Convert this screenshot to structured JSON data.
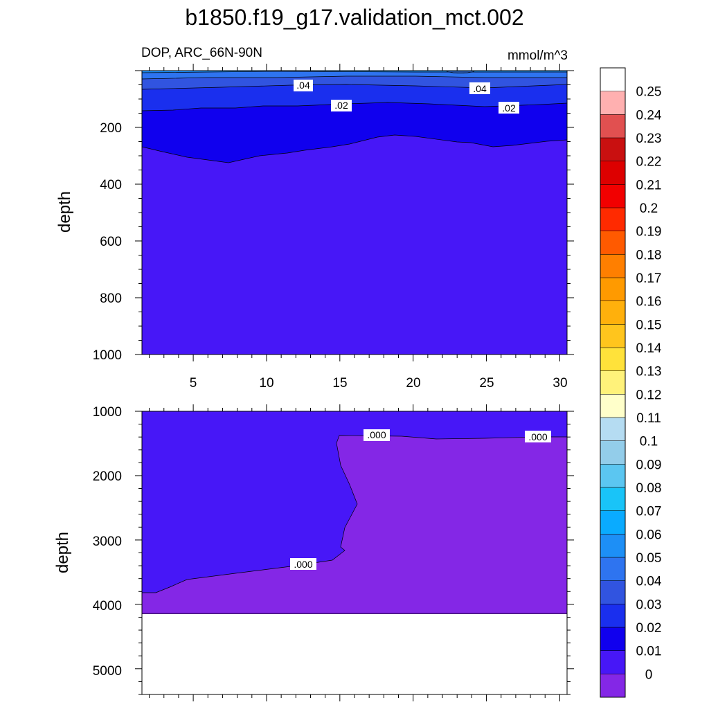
{
  "title": "b1850.f19_g17.validation_mct.002",
  "subtitle_left": "DOP, ARC_66N-90N",
  "subtitle_right": "mmol/m^3",
  "colors": {
    "levels": [
      "#8427e6",
      "#4717f7",
      "#1000ee",
      "#1a2fee",
      "#3154e0",
      "#2e74f0",
      "#1d8ff6",
      "#0aabff",
      "#19c4f8",
      "#5bc6f1",
      "#93cdea",
      "#b5dcf2",
      "#ffffca",
      "#fff27a",
      "#ffe23a",
      "#ffc51d",
      "#ffb00c",
      "#ff9a00",
      "#ff7f00",
      "#ff5a00",
      "#ff2a00",
      "#f20000",
      "#dd0000",
      "#c91010",
      "#e15050",
      "#ffb0b0"
    ]
  },
  "chart_data": [
    {
      "type": "contour",
      "panel": "upper",
      "title": "b1850.f19_g17.validation_mct.002",
      "subtitle_left": "DOP, ARC_66N-90N",
      "subtitle_right": "mmol/m^3",
      "xlabel": "",
      "ylabel": "depth",
      "xlim": [
        1.5,
        30.5
      ],
      "ylim": [
        1000,
        0
      ],
      "xticks": [
        "5",
        "10",
        "15",
        "20",
        "25",
        "30"
      ],
      "yticks": [
        "200",
        "400",
        "600",
        "800",
        "1000"
      ],
      "contour_labels": [
        ".04",
        ".04",
        ".02",
        ".02"
      ],
      "regions": [
        {
          "level": "0.03-0.04",
          "top_depth": 0,
          "bottom_depth": 15
        },
        {
          "level": "0.02-0.03",
          "top_depth": 15,
          "bottom_depth": 65
        },
        {
          "level": "0.01-0.02",
          "top_depth": 65,
          "bottom_depth": 145
        },
        {
          "level": "0.00-0.01",
          "top_depth": 145,
          "bottom_depth": 270
        },
        {
          "level": "0-0.00",
          "top_depth": 270,
          "bottom_depth": 1000
        }
      ]
    },
    {
      "type": "contour",
      "panel": "lower",
      "xlabel": "",
      "ylabel": "depth",
      "xlim": [
        1.5,
        30.5
      ],
      "ylim": [
        5400,
        1000
      ],
      "yticks": [
        "1000",
        "2000",
        "3000",
        "4000",
        "5000"
      ],
      "bottom_of_data": 4100,
      "contour_labels": [
        ".000",
        ".000",
        ".000"
      ],
      "regions": [
        {
          "level": "0.00-0.01",
          "description": "upper left region"
        },
        {
          "level": "0-0.00",
          "description": "lower and right region"
        }
      ]
    }
  ],
  "colorbar": {
    "labels": [
      "0",
      "0.01",
      "0.02",
      "0.03",
      "0.04",
      "0.05",
      "0.06",
      "0.07",
      "0.08",
      "0.09",
      "0.1",
      "0.11",
      "0.12",
      "0.13",
      "0.14",
      "0.15",
      "0.16",
      "0.17",
      "0.18",
      "0.19",
      "0.2",
      "0.21",
      "0.22",
      "0.23",
      "0.24",
      "0.25"
    ]
  }
}
